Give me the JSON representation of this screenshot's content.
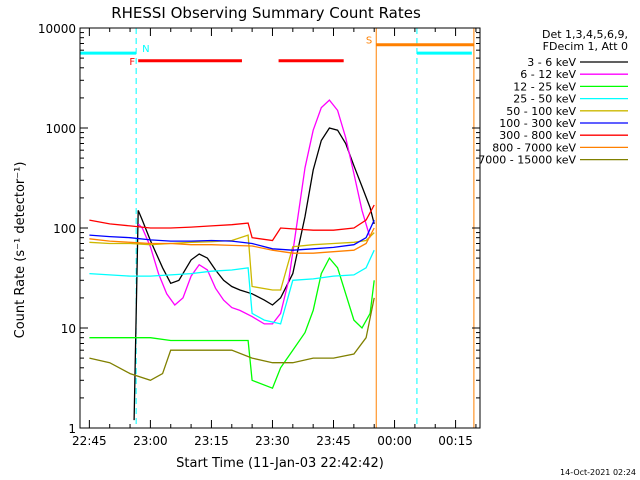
{
  "chart_data": {
    "type": "line",
    "title": "RHESSI Observing Summary Count Rates",
    "xlabel": "Start Time (11-Jan-03 22:42:42)",
    "ylabel": "Count Rate (s⁻¹ detector⁻¹)",
    "footer": "14-Oct-2021 02:24",
    "y_scale": "log",
    "ylim": [
      1,
      10000
    ],
    "xlim": [
      "22:42:42",
      "00:21:00"
    ],
    "x_ticks": [
      "22:45",
      "23:00",
      "23:15",
      "23:30",
      "23:45",
      "00:00",
      "00:15"
    ],
    "y_ticks": [
      "1",
      "10",
      "100",
      "1000",
      "10000"
    ],
    "legend": {
      "placement": "right",
      "header": [
        "Det 1,3,4,5,6,9,",
        "FDecim 1, Att 0"
      ]
    },
    "flags": [
      {
        "label": "N",
        "kind": "night",
        "color": "#00ffff",
        "level": 5600,
        "segments": [
          [
            "22:42:42",
            "22:56:30"
          ],
          [
            "00:05:30",
            "00:19:00"
          ]
        ],
        "boundaries": [
          "22:56:30",
          "00:05:30"
        ],
        "boundary_style": "dashed"
      },
      {
        "label": "F",
        "kind": "flare",
        "color": "#ff0000",
        "level": 4700,
        "segments": [
          [
            "22:57:00",
            "23:22:30"
          ],
          [
            "23:31:30",
            "23:47:30"
          ]
        ]
      },
      {
        "label": "S",
        "kind": "SAA",
        "color": "#ff8000",
        "level": 6800,
        "segments": [
          [
            "23:55:30",
            "00:19:30"
          ]
        ],
        "boundaries": [
          "23:55:30",
          "00:19:30"
        ],
        "boundary_style": "solid"
      }
    ],
    "series": [
      {
        "name": "3 - 6 keV",
        "color": "#000000",
        "x": [
          "22:56",
          "22:57",
          "22:58",
          "23:00",
          "23:03",
          "23:05",
          "23:07",
          "23:10",
          "23:12",
          "23:14",
          "23:16",
          "23:18",
          "23:20",
          "23:22",
          "23:25",
          "23:28",
          "23:30",
          "23:32",
          "23:35",
          "23:38",
          "23:40",
          "23:42",
          "23:44",
          "23:46",
          "23:48",
          "23:50",
          "23:52",
          "23:54",
          "23:55"
        ],
        "y": [
          1.2,
          150,
          120,
          75,
          40,
          28,
          30,
          48,
          55,
          50,
          38,
          30,
          26,
          24,
          22,
          19,
          17,
          20,
          35,
          130,
          380,
          750,
          1000,
          950,
          700,
          420,
          260,
          160,
          110
        ]
      },
      {
        "name": "6 - 12 keV",
        "color": "#ff00ff",
        "x": [
          "22:57",
          "22:58",
          "23:00",
          "23:02",
          "23:04",
          "23:06",
          "23:08",
          "23:10",
          "23:12",
          "23:14",
          "23:16",
          "23:18",
          "23:20",
          "23:22",
          "23:25",
          "23:28",
          "23:30",
          "23:32",
          "23:34",
          "23:36",
          "23:38",
          "23:40",
          "23:42",
          "23:44",
          "23:46",
          "23:48",
          "23:50",
          "23:52",
          "23:54"
        ],
        "y": [
          110,
          100,
          65,
          35,
          22,
          17,
          20,
          33,
          43,
          38,
          25,
          19,
          16,
          15,
          13,
          11,
          11,
          14,
          30,
          110,
          400,
          950,
          1600,
          1900,
          1500,
          800,
          350,
          150,
          80
        ]
      },
      {
        "name": "12 - 25 keV",
        "color": "#00ff00",
        "x": [
          "22:45",
          "22:50",
          "22:55",
          "23:00",
          "23:05",
          "23:10",
          "23:15",
          "23:20",
          "23:24",
          "23:25",
          "23:30",
          "23:32",
          "23:35",
          "23:38",
          "23:40",
          "23:42",
          "23:44",
          "23:46",
          "23:48",
          "23:50",
          "23:52",
          "23:54",
          "23:55"
        ],
        "y": [
          8,
          8,
          8,
          8,
          7.5,
          7.5,
          7.5,
          7.5,
          7.5,
          3,
          2.5,
          4,
          6,
          9,
          15,
          35,
          50,
          40,
          22,
          12,
          10,
          14,
          30
        ]
      },
      {
        "name": "25 - 50 keV",
        "color": "#00ffff",
        "x": [
          "22:45",
          "22:50",
          "22:55",
          "23:00",
          "23:05",
          "23:10",
          "23:15",
          "23:20",
          "23:24",
          "23:25",
          "23:28",
          "23:32",
          "23:35",
          "23:40",
          "23:45",
          "23:50",
          "23:53",
          "23:55"
        ],
        "y": [
          35,
          34,
          33,
          33,
          34,
          35,
          37,
          38,
          40,
          14,
          12,
          11,
          30,
          31,
          33,
          34,
          40,
          60
        ]
      },
      {
        "name": "50 - 100 keV",
        "color": "#ccb800",
        "x": [
          "22:45",
          "22:50",
          "22:55",
          "23:00",
          "23:05",
          "23:10",
          "23:15",
          "23:20",
          "23:24",
          "23:25",
          "23:30",
          "23:32",
          "23:35",
          "23:40",
          "23:45",
          "23:50",
          "23:53",
          "23:55"
        ],
        "y": [
          72,
          70,
          70,
          68,
          70,
          72,
          73,
          75,
          85,
          26,
          24,
          24,
          65,
          68,
          70,
          72,
          75,
          90
        ]
      },
      {
        "name": "100 - 300 keV",
        "color": "#0000ff",
        "x": [
          "22:45",
          "22:50",
          "22:55",
          "23:00",
          "23:05",
          "23:10",
          "23:15",
          "23:20",
          "23:25",
          "23:30",
          "23:35",
          "23:40",
          "23:45",
          "23:50",
          "23:53",
          "23:55"
        ],
        "y": [
          85,
          82,
          80,
          76,
          74,
          74,
          75,
          74,
          70,
          62,
          60,
          62,
          64,
          68,
          80,
          120
        ]
      },
      {
        "name": "300 - 800 keV",
        "color": "#ff0000",
        "x": [
          "22:45",
          "22:50",
          "22:55",
          "23:00",
          "23:05",
          "23:10",
          "23:15",
          "23:20",
          "23:24",
          "23:25",
          "23:30",
          "23:32",
          "23:35",
          "23:40",
          "23:45",
          "23:50",
          "23:53",
          "23:55"
        ],
        "y": [
          120,
          110,
          105,
          100,
          100,
          102,
          105,
          108,
          112,
          80,
          75,
          100,
          98,
          95,
          95,
          100,
          120,
          170
        ]
      },
      {
        "name": "800 - 7000 keV",
        "color": "#ff8000",
        "x": [
          "22:45",
          "22:50",
          "22:55",
          "23:00",
          "23:05",
          "23:10",
          "23:15",
          "23:20",
          "23:25",
          "23:30",
          "23:35",
          "23:40",
          "23:45",
          "23:50",
          "23:53",
          "23:55"
        ],
        "y": [
          78,
          74,
          72,
          70,
          70,
          68,
          68,
          67,
          66,
          60,
          56,
          56,
          58,
          60,
          70,
          100
        ]
      },
      {
        "name": "7000 - 15000 keV",
        "color": "#808000",
        "x": [
          "22:45",
          "22:50",
          "22:55",
          "23:00",
          "23:03",
          "23:05",
          "23:10",
          "23:15",
          "23:20",
          "23:25",
          "23:30",
          "23:35",
          "23:40",
          "23:45",
          "23:50",
          "23:53",
          "23:55"
        ],
        "y": [
          5,
          4.5,
          3.5,
          3,
          3.5,
          6,
          6,
          6,
          6,
          5,
          4.5,
          4.5,
          5,
          5,
          5.5,
          8,
          20
        ]
      }
    ]
  }
}
